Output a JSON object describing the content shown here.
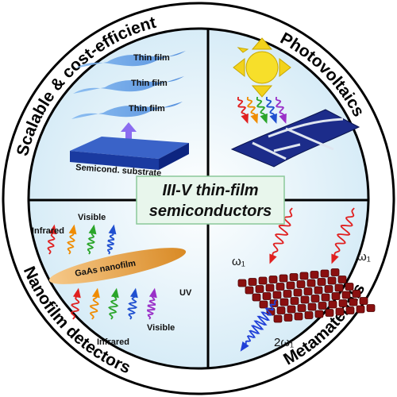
{
  "labels": {
    "top_left": "Scalable & cost-efficient",
    "top_right": "Photovoltaics",
    "bottom_left": "Nanofilm detectors",
    "bottom_right": "Metamaterials"
  },
  "center": {
    "line1": "III-V thin-film",
    "line2": "semiconductors"
  },
  "scalable": {
    "films": [
      "Thin film",
      "Thin film",
      "Thin film"
    ],
    "substrate": "Semicond. substrate"
  },
  "detectors": {
    "top": [
      "Infrared",
      "Visible"
    ],
    "film": "GaAs nanofilm",
    "bottom": [
      "UV",
      "Visible",
      "Infrared"
    ]
  },
  "metamaterials": {
    "input_1": "ω₁",
    "input_2": "ω₁",
    "output": "2ω₁"
  }
}
